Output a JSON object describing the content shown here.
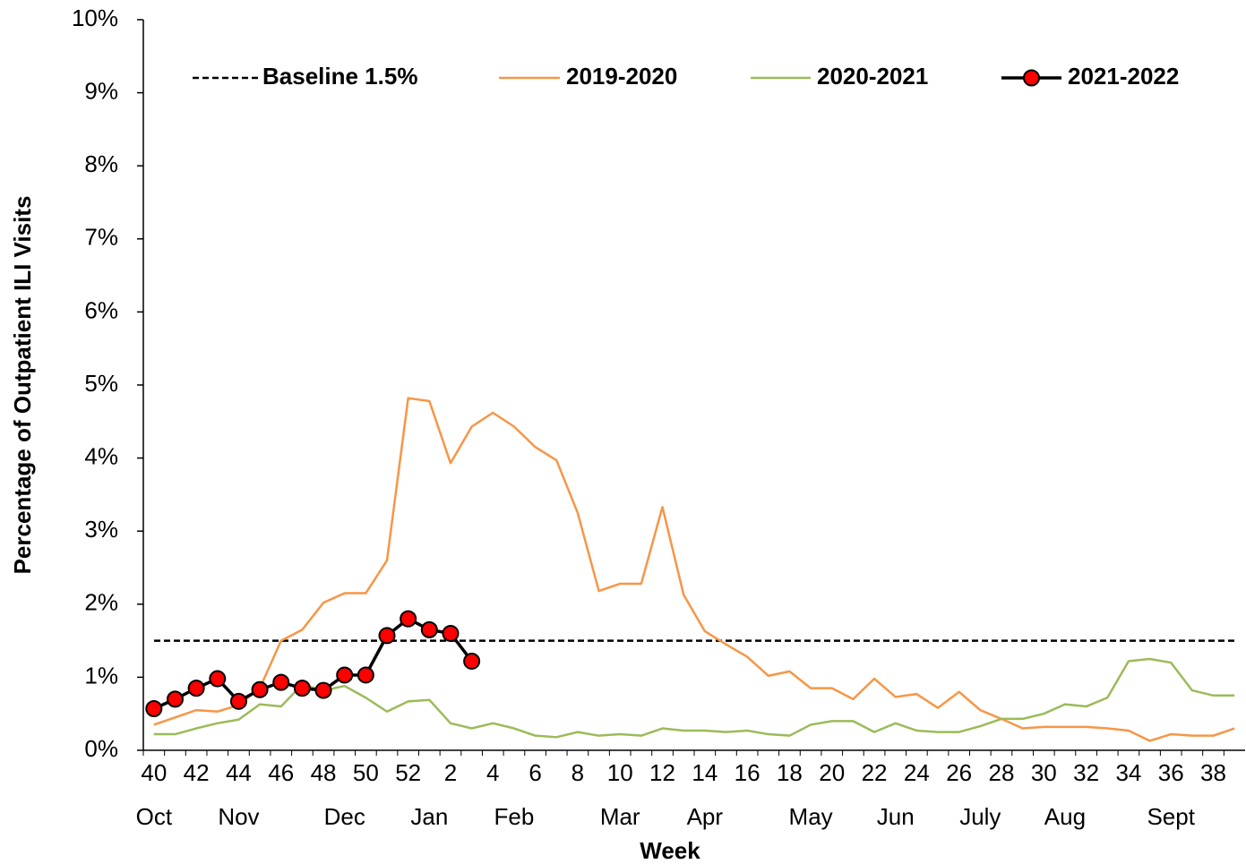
{
  "chart_data": {
    "type": "line",
    "ylabel": "Percentage of Outpatient ILI Visits",
    "xlabel": "Week",
    "categories": [
      "40",
      null,
      "42",
      null,
      "44",
      null,
      "46",
      null,
      "48",
      null,
      "50",
      null,
      "52",
      null,
      "2",
      null,
      "4",
      null,
      "6",
      null,
      "8",
      null,
      "10",
      null,
      "12",
      null,
      "14",
      null,
      "16",
      null,
      "18",
      null,
      "20",
      null,
      "22",
      null,
      "24",
      null,
      "26",
      null,
      "28",
      null,
      "30",
      null,
      "32",
      null,
      "34",
      null,
      "36",
      null,
      "38",
      null
    ],
    "month_labels": [
      "Oct",
      null,
      null,
      null,
      "Nov",
      null,
      null,
      null,
      null,
      "Dec",
      null,
      null,
      null,
      "Jan",
      null,
      null,
      null,
      "Feb",
      null,
      null,
      null,
      null,
      "Mar",
      null,
      null,
      null,
      "Apr",
      null,
      null,
      null,
      null,
      "May",
      null,
      null,
      null,
      "Jun",
      null,
      null,
      null,
      "July",
      null,
      null,
      null,
      "Aug",
      null,
      null,
      null,
      null,
      "Sept",
      null,
      null,
      null
    ],
    "ylim": [
      0,
      10
    ],
    "yticks": [
      {
        "value": 0,
        "label": "0%"
      },
      {
        "value": 1,
        "label": "1%"
      },
      {
        "value": 2,
        "label": "2%"
      },
      {
        "value": 3,
        "label": "3%"
      },
      {
        "value": 4,
        "label": "4%"
      },
      {
        "value": 5,
        "label": "5%"
      },
      {
        "value": 6,
        "label": "6%"
      },
      {
        "value": 7,
        "label": "7%"
      },
      {
        "value": 8,
        "label": "8%"
      },
      {
        "value": 9,
        "label": "9%"
      },
      {
        "value": 10,
        "label": "10%"
      }
    ],
    "baseline": {
      "name": "Baseline 1.5%",
      "value": 1.5,
      "color": "#000000"
    },
    "series": [
      {
        "name": "2019-2020",
        "color": "#f79646",
        "marker": false,
        "values": [
          0.35,
          0.45,
          0.55,
          0.53,
          0.62,
          0.85,
          1.5,
          1.65,
          2.02,
          2.15,
          2.15,
          2.6,
          4.82,
          4.78,
          3.93,
          4.43,
          4.62,
          4.43,
          4.15,
          3.97,
          3.25,
          2.18,
          2.28,
          2.28,
          3.33,
          2.13,
          1.63,
          1.45,
          1.28,
          1.02,
          1.08,
          0.85,
          0.85,
          0.7,
          0.98,
          0.73,
          0.77,
          0.58,
          0.8,
          0.55,
          0.43,
          0.3,
          0.32,
          0.32,
          0.32,
          0.3,
          0.27,
          0.13,
          0.22,
          0.2,
          0.2,
          0.3
        ]
      },
      {
        "name": "2020-2021",
        "color": "#9bbb59",
        "marker": false,
        "values": [
          0.22,
          0.22,
          0.3,
          0.37,
          0.42,
          0.63,
          0.6,
          0.9,
          0.82,
          0.88,
          0.72,
          0.53,
          0.67,
          0.69,
          0.37,
          0.3,
          0.37,
          0.3,
          0.2,
          0.18,
          0.25,
          0.2,
          0.22,
          0.2,
          0.3,
          0.27,
          0.27,
          0.25,
          0.27,
          0.22,
          0.2,
          0.35,
          0.4,
          0.4,
          0.25,
          0.37,
          0.27,
          0.25,
          0.25,
          0.33,
          0.43,
          0.43,
          0.5,
          0.63,
          0.6,
          0.72,
          1.22,
          1.25,
          1.2,
          0.82,
          0.75,
          0.75
        ]
      },
      {
        "name": "2021-2022",
        "color": "#000000",
        "marker": true,
        "marker_color": "#ff0000",
        "values": [
          0.57,
          0.7,
          0.85,
          0.98,
          0.67,
          0.83,
          0.93,
          0.85,
          0.82,
          1.03,
          1.03,
          1.57,
          1.8,
          1.65,
          1.6,
          1.22,
          null,
          null,
          null,
          null,
          null,
          null,
          null,
          null,
          null,
          null,
          null,
          null,
          null,
          null,
          null,
          null,
          null,
          null,
          null,
          null,
          null,
          null,
          null,
          null,
          null,
          null,
          null,
          null,
          null,
          null,
          null,
          null,
          null,
          null,
          null,
          null
        ]
      }
    ]
  }
}
